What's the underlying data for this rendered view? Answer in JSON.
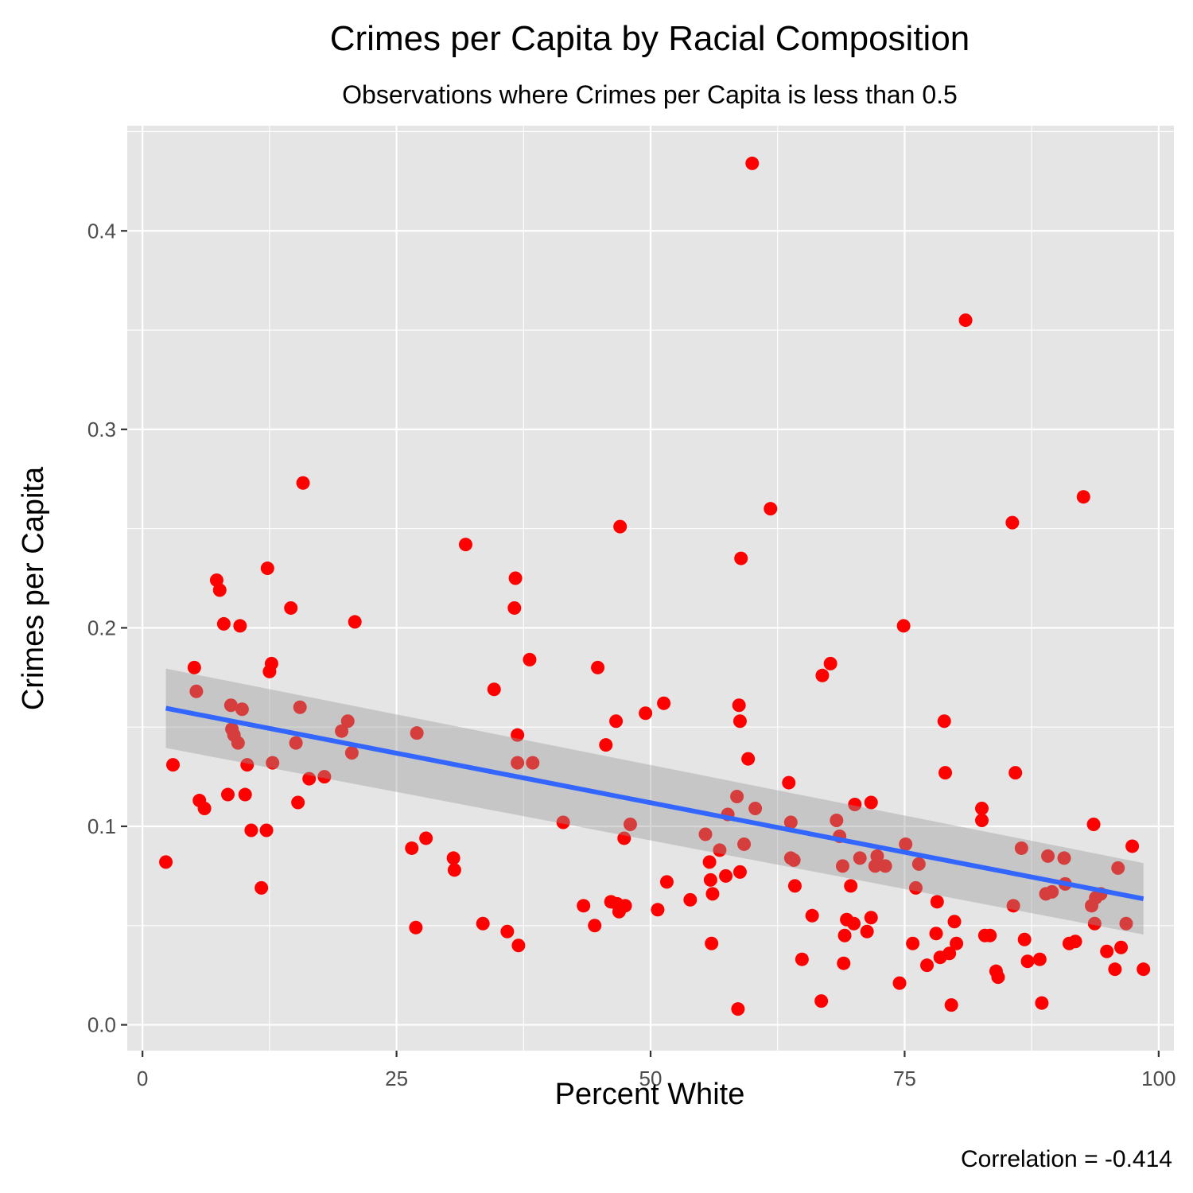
{
  "chart_data": {
    "type": "scatter",
    "title": "Crimes per Capita by Racial Composition",
    "subtitle": "Observations where Crimes per Capita is less than 0.5",
    "xlabel": "Percent White",
    "ylabel": "Crimes per Capita",
    "caption": "Correlation = -0.414",
    "xlim": [
      -1.5,
      101.5
    ],
    "ylim": [
      -0.013,
      0.453
    ],
    "x_ticks": [
      0,
      25,
      50,
      75,
      100
    ],
    "x_tick_labels": [
      "0",
      "25",
      "50",
      "75",
      "100"
    ],
    "y_ticks": [
      0.0,
      0.1,
      0.2,
      0.3,
      0.4
    ],
    "y_tick_labels": [
      "0.0",
      "0.1",
      "0.2",
      "0.3",
      "0.4"
    ],
    "grid": true,
    "colors": {
      "panel": "#e5e5e5",
      "grid": "#ffffff",
      "points": "#ff0000",
      "fit_line": "#3366ff",
      "ribbon": "#999999"
    },
    "fit": {
      "method": "linear",
      "x": [
        2.3,
        98.5
      ],
      "y": [
        0.1595,
        0.0635
      ],
      "ci_lower": [
        0.1395,
        0.0455
      ],
      "ci_upper": [
        0.1795,
        0.0815
      ]
    },
    "points": [
      [
        2.3,
        0.082
      ],
      [
        3.0,
        0.131
      ],
      [
        5.1,
        0.18
      ],
      [
        5.3,
        0.168
      ],
      [
        5.6,
        0.113
      ],
      [
        6.1,
        0.109
      ],
      [
        7.3,
        0.224
      ],
      [
        7.6,
        0.219
      ],
      [
        8.0,
        0.202
      ],
      [
        8.4,
        0.116
      ],
      [
        8.7,
        0.161
      ],
      [
        8.8,
        0.149
      ],
      [
        9.0,
        0.146
      ],
      [
        9.4,
        0.142
      ],
      [
        9.6,
        0.201
      ],
      [
        9.8,
        0.159
      ],
      [
        10.1,
        0.116
      ],
      [
        10.3,
        0.131
      ],
      [
        10.7,
        0.098
      ],
      [
        11.7,
        0.069
      ],
      [
        12.2,
        0.098
      ],
      [
        12.3,
        0.23
      ],
      [
        12.5,
        0.178
      ],
      [
        12.7,
        0.182
      ],
      [
        12.8,
        0.132
      ],
      [
        14.6,
        0.21
      ],
      [
        15.1,
        0.142
      ],
      [
        15.3,
        0.112
      ],
      [
        15.5,
        0.16
      ],
      [
        15.8,
        0.273
      ],
      [
        16.4,
        0.124
      ],
      [
        17.9,
        0.125
      ],
      [
        19.6,
        0.148
      ],
      [
        20.2,
        0.153
      ],
      [
        20.6,
        0.137
      ],
      [
        20.9,
        0.203
      ],
      [
        26.5,
        0.089
      ],
      [
        26.9,
        0.049
      ],
      [
        27.0,
        0.147
      ],
      [
        27.9,
        0.094
      ],
      [
        30.6,
        0.084
      ],
      [
        30.7,
        0.078
      ],
      [
        31.8,
        0.242
      ],
      [
        33.5,
        0.051
      ],
      [
        34.6,
        0.169
      ],
      [
        35.9,
        0.047
      ],
      [
        36.6,
        0.21
      ],
      [
        36.7,
        0.225
      ],
      [
        36.9,
        0.132
      ],
      [
        36.9,
        0.146
      ],
      [
        37.0,
        0.04
      ],
      [
        38.1,
        0.184
      ],
      [
        38.4,
        0.132
      ],
      [
        41.4,
        0.102
      ],
      [
        43.4,
        0.06
      ],
      [
        44.5,
        0.05
      ],
      [
        44.8,
        0.18
      ],
      [
        45.6,
        0.141
      ],
      [
        46.1,
        0.062
      ],
      [
        46.6,
        0.153
      ],
      [
        46.7,
        0.061
      ],
      [
        46.9,
        0.057
      ],
      [
        47.0,
        0.251
      ],
      [
        47.4,
        0.094
      ],
      [
        47.5,
        0.06
      ],
      [
        48.0,
        0.101
      ],
      [
        49.5,
        0.157
      ],
      [
        50.7,
        0.058
      ],
      [
        51.3,
        0.162
      ],
      [
        51.6,
        0.072
      ],
      [
        53.9,
        0.063
      ],
      [
        55.4,
        0.096
      ],
      [
        55.8,
        0.082
      ],
      [
        55.9,
        0.073
      ],
      [
        56.0,
        0.041
      ],
      [
        56.1,
        0.066
      ],
      [
        56.8,
        0.088
      ],
      [
        57.4,
        0.075
      ],
      [
        57.6,
        0.106
      ],
      [
        58.5,
        0.115
      ],
      [
        58.6,
        0.008
      ],
      [
        58.7,
        0.161
      ],
      [
        58.8,
        0.077
      ],
      [
        58.8,
        0.153
      ],
      [
        58.9,
        0.235
      ],
      [
        59.2,
        0.091
      ],
      [
        59.6,
        0.134
      ],
      [
        60.0,
        0.434
      ],
      [
        60.3,
        0.109
      ],
      [
        61.8,
        0.26
      ],
      [
        63.6,
        0.122
      ],
      [
        63.8,
        0.084
      ],
      [
        63.8,
        0.102
      ],
      [
        64.1,
        0.083
      ],
      [
        64.2,
        0.07
      ],
      [
        64.9,
        0.033
      ],
      [
        65.9,
        0.055
      ],
      [
        66.8,
        0.012
      ],
      [
        66.9,
        0.176
      ],
      [
        67.7,
        0.182
      ],
      [
        68.3,
        0.103
      ],
      [
        68.6,
        0.095
      ],
      [
        68.9,
        0.08
      ],
      [
        69.0,
        0.031
      ],
      [
        69.1,
        0.045
      ],
      [
        69.3,
        0.053
      ],
      [
        69.7,
        0.07
      ],
      [
        70.0,
        0.051
      ],
      [
        70.1,
        0.111
      ],
      [
        70.6,
        0.084
      ],
      [
        71.3,
        0.047
      ],
      [
        71.7,
        0.054
      ],
      [
        71.7,
        0.112
      ],
      [
        72.1,
        0.08
      ],
      [
        72.3,
        0.085
      ],
      [
        73.1,
        0.08
      ],
      [
        74.5,
        0.021
      ],
      [
        74.9,
        0.201
      ],
      [
        75.1,
        0.091
      ],
      [
        75.8,
        0.041
      ],
      [
        76.1,
        0.069
      ],
      [
        76.4,
        0.081
      ],
      [
        77.2,
        0.03
      ],
      [
        78.1,
        0.046
      ],
      [
        78.2,
        0.062
      ],
      [
        78.5,
        0.034
      ],
      [
        78.9,
        0.153
      ],
      [
        79.0,
        0.127
      ],
      [
        79.4,
        0.036
      ],
      [
        79.6,
        0.01
      ],
      [
        79.9,
        0.052
      ],
      [
        80.1,
        0.041
      ],
      [
        81.0,
        0.355
      ],
      [
        82.6,
        0.103
      ],
      [
        82.6,
        0.109
      ],
      [
        82.9,
        0.045
      ],
      [
        83.4,
        0.045
      ],
      [
        84.0,
        0.027
      ],
      [
        84.2,
        0.024
      ],
      [
        85.6,
        0.253
      ],
      [
        85.7,
        0.06
      ],
      [
        85.9,
        0.127
      ],
      [
        86.5,
        0.089
      ],
      [
        86.8,
        0.043
      ],
      [
        87.1,
        0.032
      ],
      [
        88.3,
        0.033
      ],
      [
        88.5,
        0.011
      ],
      [
        88.9,
        0.066
      ],
      [
        89.1,
        0.085
      ],
      [
        89.5,
        0.067
      ],
      [
        90.7,
        0.084
      ],
      [
        90.8,
        0.071
      ],
      [
        91.2,
        0.041
      ],
      [
        91.8,
        0.042
      ],
      [
        92.6,
        0.266
      ],
      [
        93.4,
        0.06
      ],
      [
        93.6,
        0.101
      ],
      [
        93.7,
        0.051
      ],
      [
        93.8,
        0.064
      ],
      [
        94.3,
        0.066
      ],
      [
        94.9,
        0.037
      ],
      [
        95.7,
        0.028
      ],
      [
        96.0,
        0.079
      ],
      [
        96.3,
        0.039
      ],
      [
        96.8,
        0.051
      ],
      [
        97.4,
        0.09
      ],
      [
        98.5,
        0.028
      ]
    ]
  }
}
